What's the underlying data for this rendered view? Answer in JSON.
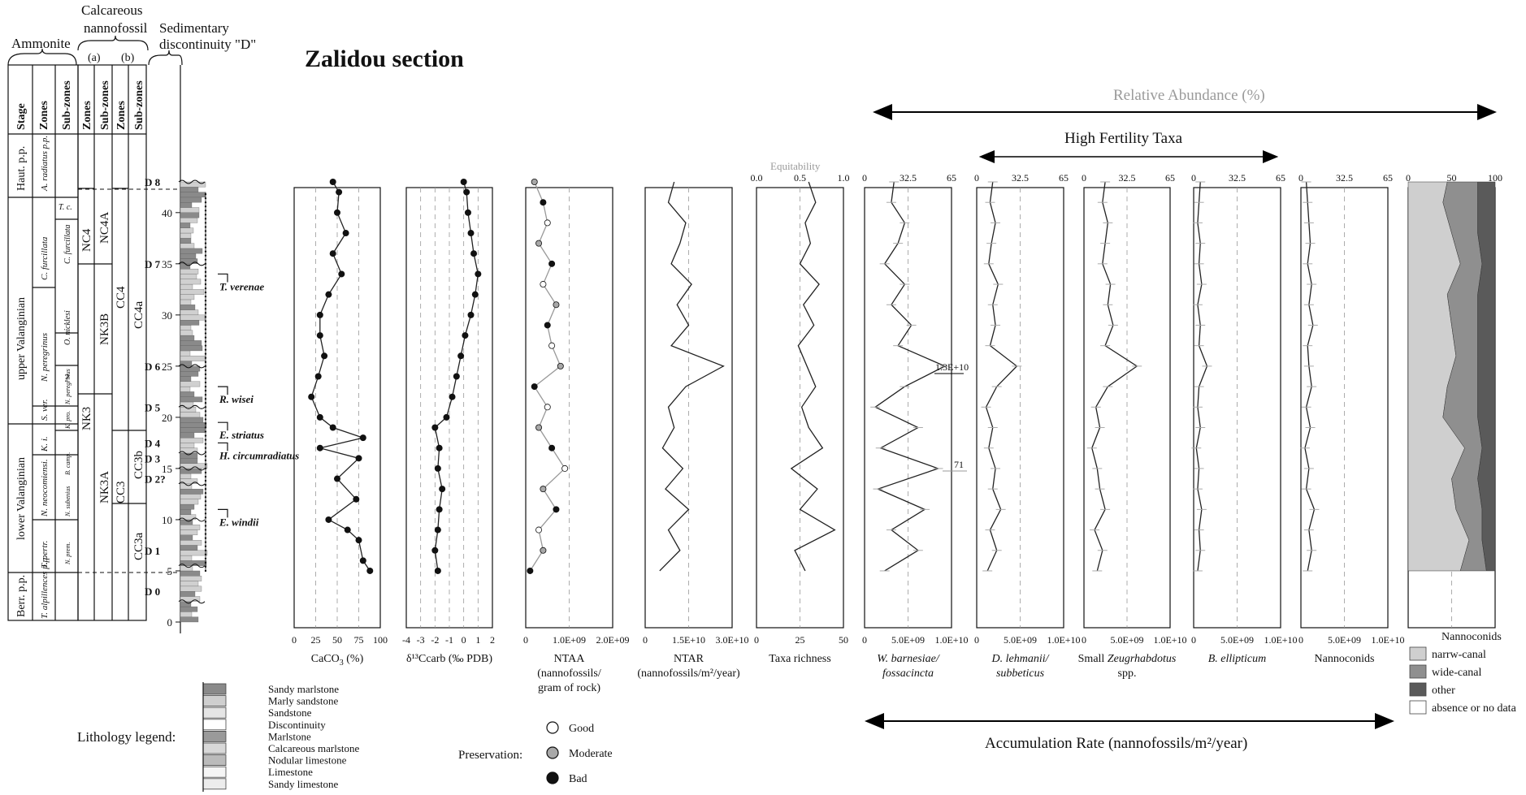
{
  "title": "Zalidou section",
  "column_headers": {
    "ammonite": "Ammonite",
    "nannofossil_line1": "Calcareous",
    "nannofossil_line2": "nannofossil",
    "discontinuity_line1": "Sedimentary",
    "discontinuity_line2": "discontinuity \"D\"",
    "a": "(a)",
    "b": "(b)",
    "stage": "Stage",
    "zones": "Zones",
    "subzones": "Sub-zones"
  },
  "stages": [
    "Haut. p.p.",
    "upper Valanginian",
    "lower Valanginian",
    "Berr. p.p."
  ],
  "ammonite_zones": [
    "A. radiatus p.p.",
    "C. furcillata",
    "N. peregrinus",
    "S. ver.",
    "K. i.",
    "N. neocomiensi.",
    "T. pertr.",
    "T. alpillences p.p."
  ],
  "ammonite_subzones": [
    "T. c.",
    "C. furcillata",
    "O. nicklesi",
    "?",
    "N. peregrinus",
    "K. pro.",
    "B. camp.",
    "N. subenius",
    "N. prem."
  ],
  "nanno_zones_a": [
    "NC4",
    "NK3"
  ],
  "nanno_subzones_a": [
    "NC4A",
    "NK3B",
    "NK3A"
  ],
  "nanno_zones_b": [
    "CC4",
    "CC3"
  ],
  "nanno_subzones_b": [
    "CC4a",
    "CC3b",
    "CC3a"
  ],
  "depth_ticks": [
    "0",
    "5",
    "10",
    "15",
    "20",
    "25",
    "30",
    "35",
    "40"
  ],
  "discontinuities": [
    "D 0",
    "D 1",
    "D 2?",
    "D 3",
    "D 4",
    "D 5",
    "D 6",
    "D 7",
    "D 8"
  ],
  "bioevents": [
    "T. verenae",
    "R. wisei",
    "E. striatus",
    "H. circumradiatus",
    "E. windii"
  ],
  "top_labels": {
    "relative_abundance": "Relative Abundance (%)",
    "high_fertility": "High Fertility Taxa",
    "equitability": "Equitability",
    "accumulation_rate": "Accumulation Rate (nannofossils/m²/year)",
    "peak_1": "1.3E+10",
    "peak_2": "71"
  },
  "lithology": {
    "title": "Lithology legend:",
    "items": [
      "Sandy marlstone",
      "Marly sandstone",
      "Sandstone",
      "Discontinuity",
      "Marlstone",
      "Calcareous marlstone",
      "Nodular limestone",
      "Limestone",
      "Sandy limestone"
    ]
  },
  "preservation": {
    "title": "Preservation:",
    "items": [
      "Good",
      "Moderate",
      "Bad"
    ],
    "colors": [
      "#ffffff",
      "#a8a8a8",
      "#111111"
    ]
  },
  "nannoconid_legend": {
    "title": "Nannoconids",
    "items": [
      "narrw-canal",
      "wide-canal",
      "other",
      "absence or no data"
    ],
    "colors": [
      "#cfcfcf",
      "#8f8f8f",
      "#5a5a5a",
      "#ffffff"
    ]
  },
  "chart_data": [
    {
      "id": "caco3",
      "type": "line",
      "label_parts": [
        "CaCO",
        "3",
        " (%)"
      ],
      "ticks": [
        "0",
        "25",
        "50",
        "75",
        "100"
      ],
      "xlim": [
        0,
        100
      ],
      "depth": [
        5,
        6,
        8,
        9,
        10,
        12,
        14,
        16,
        17,
        18,
        19,
        20,
        22,
        24,
        26,
        28,
        30,
        32,
        34,
        36,
        38,
        40,
        42,
        43
      ],
      "values": [
        88,
        80,
        75,
        62,
        40,
        72,
        50,
        75,
        30,
        80,
        45,
        30,
        20,
        28,
        35,
        30,
        30,
        40,
        55,
        45,
        60,
        50,
        52,
        45
      ]
    },
    {
      "id": "d13c",
      "type": "line",
      "label": "δ¹³Ccarb (‰ PDB)",
      "ticks": [
        "-4",
        "-3",
        "-2",
        "-1",
        "0",
        "1",
        "2"
      ],
      "xlim": [
        -4,
        2
      ],
      "depth": [
        5,
        7,
        9,
        11,
        13,
        15,
        17,
        19,
        20,
        22,
        24,
        26,
        28,
        30,
        32,
        34,
        36,
        38,
        40,
        42,
        43
      ],
      "values": [
        -1.8,
        -2.0,
        -1.8,
        -1.7,
        -1.5,
        -1.8,
        -1.7,
        -2.0,
        -1.2,
        -0.8,
        -0.5,
        -0.2,
        0.1,
        0.5,
        0.8,
        1.0,
        0.7,
        0.5,
        0.3,
        0.2,
        0.0
      ]
    },
    {
      "id": "ntaa",
      "type": "line",
      "label_lines": [
        "NTAA",
        "(nannofossils/",
        "gram of rock)"
      ],
      "ticks": [
        "0",
        "1.0E+09",
        "2.0E+09"
      ],
      "xlim": [
        0,
        2000000000
      ],
      "depth": [
        5,
        7,
        9,
        11,
        13,
        15,
        17,
        19,
        21,
        23,
        25,
        27,
        29,
        31,
        33,
        35,
        37,
        39,
        41,
        43
      ],
      "values": [
        100000000,
        400000000,
        300000000,
        700000000,
        400000000,
        900000000,
        600000000,
        300000000,
        500000000,
        200000000,
        800000000,
        600000000,
        500000000,
        700000000,
        400000000,
        600000000,
        300000000,
        500000000,
        400000000,
        200000000
      ]
    },
    {
      "id": "ntar",
      "type": "line",
      "label_lines": [
        "NTAR",
        "(nannofossils/m²/year)"
      ],
      "ticks": [
        "0",
        "1.5E+10",
        "3.0E+10"
      ],
      "xlim": [
        0,
        30000000000
      ],
      "depth": [
        5,
        7,
        9,
        11,
        13,
        15,
        17,
        19,
        21,
        23,
        25,
        27,
        29,
        31,
        33,
        35,
        37,
        39,
        41,
        43
      ],
      "values": [
        5000000000,
        12000000000,
        8000000000,
        15000000000,
        7000000000,
        13000000000,
        6000000000,
        10000000000,
        8000000000,
        14000000000,
        27000000000,
        9000000000,
        15000000000,
        11000000000,
        16000000000,
        9000000000,
        12000000000,
        14000000000,
        8000000000,
        10000000000
      ]
    },
    {
      "id": "richness",
      "type": "line",
      "label": "Taxa richness",
      "ticks": [
        "0",
        "25",
        "50"
      ],
      "top_ticks": [
        "0.0",
        "0.5",
        "1.0"
      ],
      "xlim": [
        0,
        50
      ],
      "depth": [
        5,
        7,
        9,
        11,
        13,
        15,
        17,
        19,
        21,
        23,
        25,
        27,
        29,
        31,
        33,
        35,
        37,
        39,
        41,
        43
      ],
      "values": [
        28,
        22,
        45,
        25,
        35,
        20,
        38,
        30,
        26,
        34,
        29,
        24,
        33,
        27,
        36,
        25,
        31,
        28,
        34,
        30
      ]
    },
    {
      "id": "wbarn",
      "type": "line",
      "label_lines": [
        "W. barnesiae/",
        "fossacincta"
      ],
      "ticks": [
        "0",
        "32.5",
        "65"
      ],
      "bottom_ticks": [
        "0",
        "5.0E+09",
        "1.0E+10"
      ],
      "xlim": [
        0,
        65
      ],
      "depth": [
        5,
        7,
        9,
        11,
        13,
        15,
        17,
        19,
        21,
        23,
        25,
        27,
        29,
        31,
        33,
        35,
        37,
        39,
        41,
        43
      ],
      "values": [
        15,
        40,
        20,
        45,
        10,
        55,
        12,
        40,
        8,
        30,
        60,
        25,
        35,
        20,
        30,
        15,
        25,
        30,
        20,
        22
      ]
    },
    {
      "id": "dleh",
      "type": "line",
      "label_lines": [
        "D. lehmanii/",
        "subbeticus"
      ],
      "ticks": [
        "0",
        "32.5",
        "65"
      ],
      "bottom_ticks": [
        "0",
        "5.0E+09",
        "1.0E+10"
      ],
      "xlim": [
        0,
        65
      ],
      "depth": [
        5,
        7,
        9,
        11,
        13,
        15,
        17,
        19,
        21,
        23,
        25,
        27,
        29,
        31,
        33,
        35,
        37,
        39,
        41,
        43
      ],
      "values": [
        8,
        15,
        10,
        18,
        12,
        14,
        9,
        12,
        7,
        15,
        30,
        10,
        14,
        12,
        16,
        9,
        11,
        14,
        10,
        12
      ]
    },
    {
      "id": "zeug",
      "type": "line",
      "label": "Small Zeugrhabdotus spp.",
      "ticks": [
        "0",
        "32.5",
        "65"
      ],
      "bottom_ticks": [
        "0",
        "5.0E+09",
        "1.0E+10"
      ],
      "xlim": [
        0,
        65
      ],
      "depth": [
        5,
        7,
        9,
        11,
        13,
        15,
        17,
        19,
        21,
        23,
        25,
        27,
        29,
        31,
        33,
        35,
        37,
        39,
        41,
        43
      ],
      "values": [
        10,
        14,
        8,
        16,
        12,
        10,
        6,
        12,
        9,
        18,
        40,
        16,
        22,
        18,
        20,
        14,
        16,
        18,
        14,
        16
      ]
    },
    {
      "id": "bell",
      "type": "line",
      "label": "B. ellipticum",
      "ticks": [
        "0",
        "32.5",
        "65"
      ],
      "bottom_ticks": [
        "0",
        "5.0E+09",
        "1.0E+10"
      ],
      "xlim": [
        0,
        65
      ],
      "depth": [
        5,
        7,
        9,
        11,
        13,
        15,
        17,
        19,
        21,
        23,
        25,
        27,
        29,
        31,
        33,
        35,
        37,
        39,
        41,
        43
      ],
      "values": [
        3,
        5,
        4,
        6,
        3,
        4,
        2,
        5,
        3,
        4,
        10,
        4,
        5,
        3,
        6,
        4,
        5,
        3,
        4,
        5
      ]
    },
    {
      "id": "nanno",
      "type": "line",
      "label": "Nannoconids",
      "ticks": [
        "0",
        "32.5",
        "65"
      ],
      "bottom_ticks": [
        "0",
        "5.0E+09",
        "1.0E+10"
      ],
      "xlim": [
        0,
        65
      ],
      "depth": [
        5,
        7,
        9,
        11,
        13,
        15,
        17,
        19,
        21,
        23,
        25,
        27,
        29,
        31,
        33,
        35,
        37,
        39,
        41,
        43
      ],
      "values": [
        5,
        8,
        6,
        10,
        4,
        6,
        3,
        7,
        4,
        8,
        6,
        5,
        9,
        6,
        8,
        5,
        7,
        6,
        5,
        4
      ]
    },
    {
      "id": "nannocomp",
      "type": "area",
      "label": "",
      "ticks": [
        "0",
        "50",
        "100"
      ],
      "xlim": [
        0,
        100
      ],
      "depth": [
        5,
        8,
        11,
        14,
        17,
        20,
        23,
        26,
        29,
        32,
        35,
        38,
        41,
        43
      ],
      "series": [
        {
          "name": "narrw-canal",
          "values": [
            60,
            70,
            55,
            50,
            65,
            40,
            45,
            55,
            50,
            45,
            60,
            50,
            40,
            45
          ]
        },
        {
          "name": "wide-canal",
          "values": [
            30,
            15,
            30,
            30,
            20,
            40,
            35,
            25,
            30,
            35,
            25,
            30,
            40,
            35
          ]
        },
        {
          "name": "other",
          "values": [
            10,
            15,
            15,
            20,
            15,
            20,
            20,
            20,
            20,
            20,
            15,
            20,
            20,
            20
          ]
        }
      ]
    }
  ]
}
